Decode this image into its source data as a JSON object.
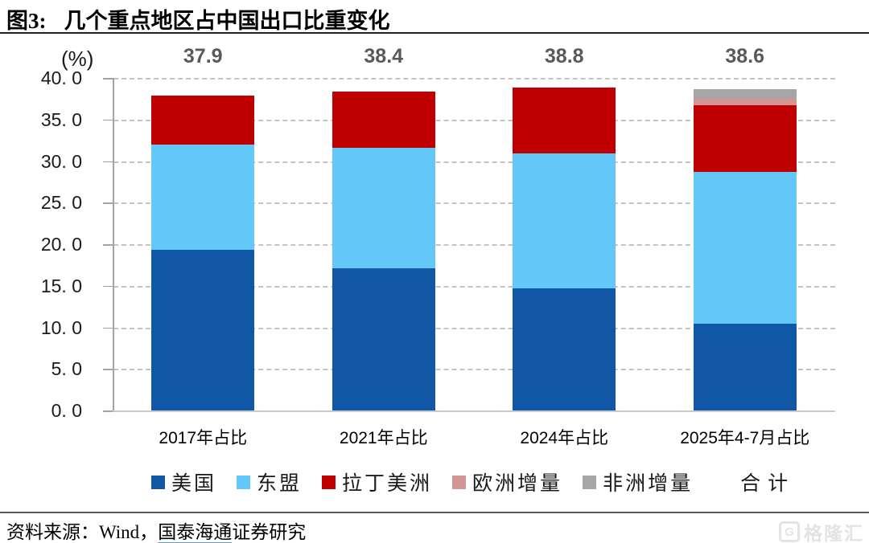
{
  "header": {
    "figure_label": "图3:",
    "title": "几个重点地区占中国出口比重变化"
  },
  "chart_data": {
    "type": "bar",
    "stacked": true,
    "title": "几个重点地区占中国出口比重变化",
    "ylabel": "(%)",
    "ylim": [
      0,
      40
    ],
    "ytick_step": 5,
    "yticks": [
      "40. 0",
      "35. 0",
      "30. 0",
      "25. 0",
      "20. 0",
      "15. 0",
      "10. 0",
      "5. 0",
      "0. 0"
    ],
    "grid": "horizontal-dashed",
    "legend_position": "bottom",
    "categories": [
      "2017年占比",
      "2021年占比",
      "2024年占比",
      "2025年4-7月占比"
    ],
    "series": [
      {
        "name": "美国",
        "color": "#1057A5",
        "values": [
          19.3,
          17.1,
          14.7,
          10.4
        ]
      },
      {
        "name": "东盟",
        "color": "#63C7F7",
        "values": [
          12.7,
          14.5,
          16.2,
          18.3
        ]
      },
      {
        "name": "拉丁美洲",
        "color": "#C00000",
        "values": [
          5.9,
          6.8,
          7.9,
          8.0
        ]
      },
      {
        "name": "欧洲增量",
        "color": "#D49694",
        "values": [
          0,
          0,
          0,
          0.8
        ]
      },
      {
        "name": "非洲增量",
        "color": "#A6A6A6",
        "values": [
          0,
          0,
          0,
          1.1
        ]
      }
    ],
    "totals": [
      37.9,
      38.4,
      38.8,
      38.6
    ],
    "totals_label": "合计"
  },
  "footer": {
    "source_prefix": "资料来源：Wind，",
    "source_link": "国泰海通",
    "source_suffix": "证券研究"
  },
  "watermark": {
    "icon": "G",
    "text": "格隆汇"
  }
}
